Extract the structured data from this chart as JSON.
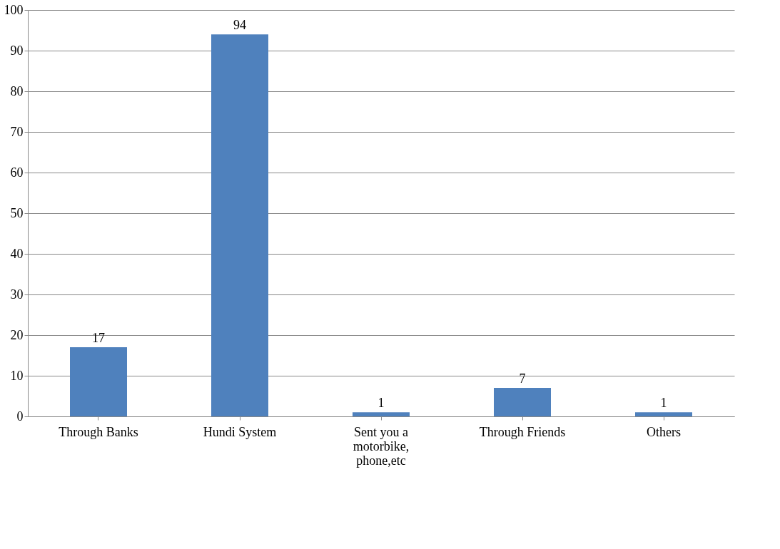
{
  "chart_data": {
    "type": "bar",
    "categories": [
      "Through Banks",
      "Hundi System",
      "Sent you a motorbike, phone,etc",
      "Through Friends",
      "Others"
    ],
    "values": [
      17,
      94,
      1,
      7,
      1
    ],
    "color": "#4f81bd",
    "ylim": [
      0,
      100
    ],
    "yticks": [
      0,
      10,
      20,
      30,
      40,
      50,
      60,
      70,
      80,
      90,
      100
    ],
    "grid": "y",
    "data_labels": true
  }
}
